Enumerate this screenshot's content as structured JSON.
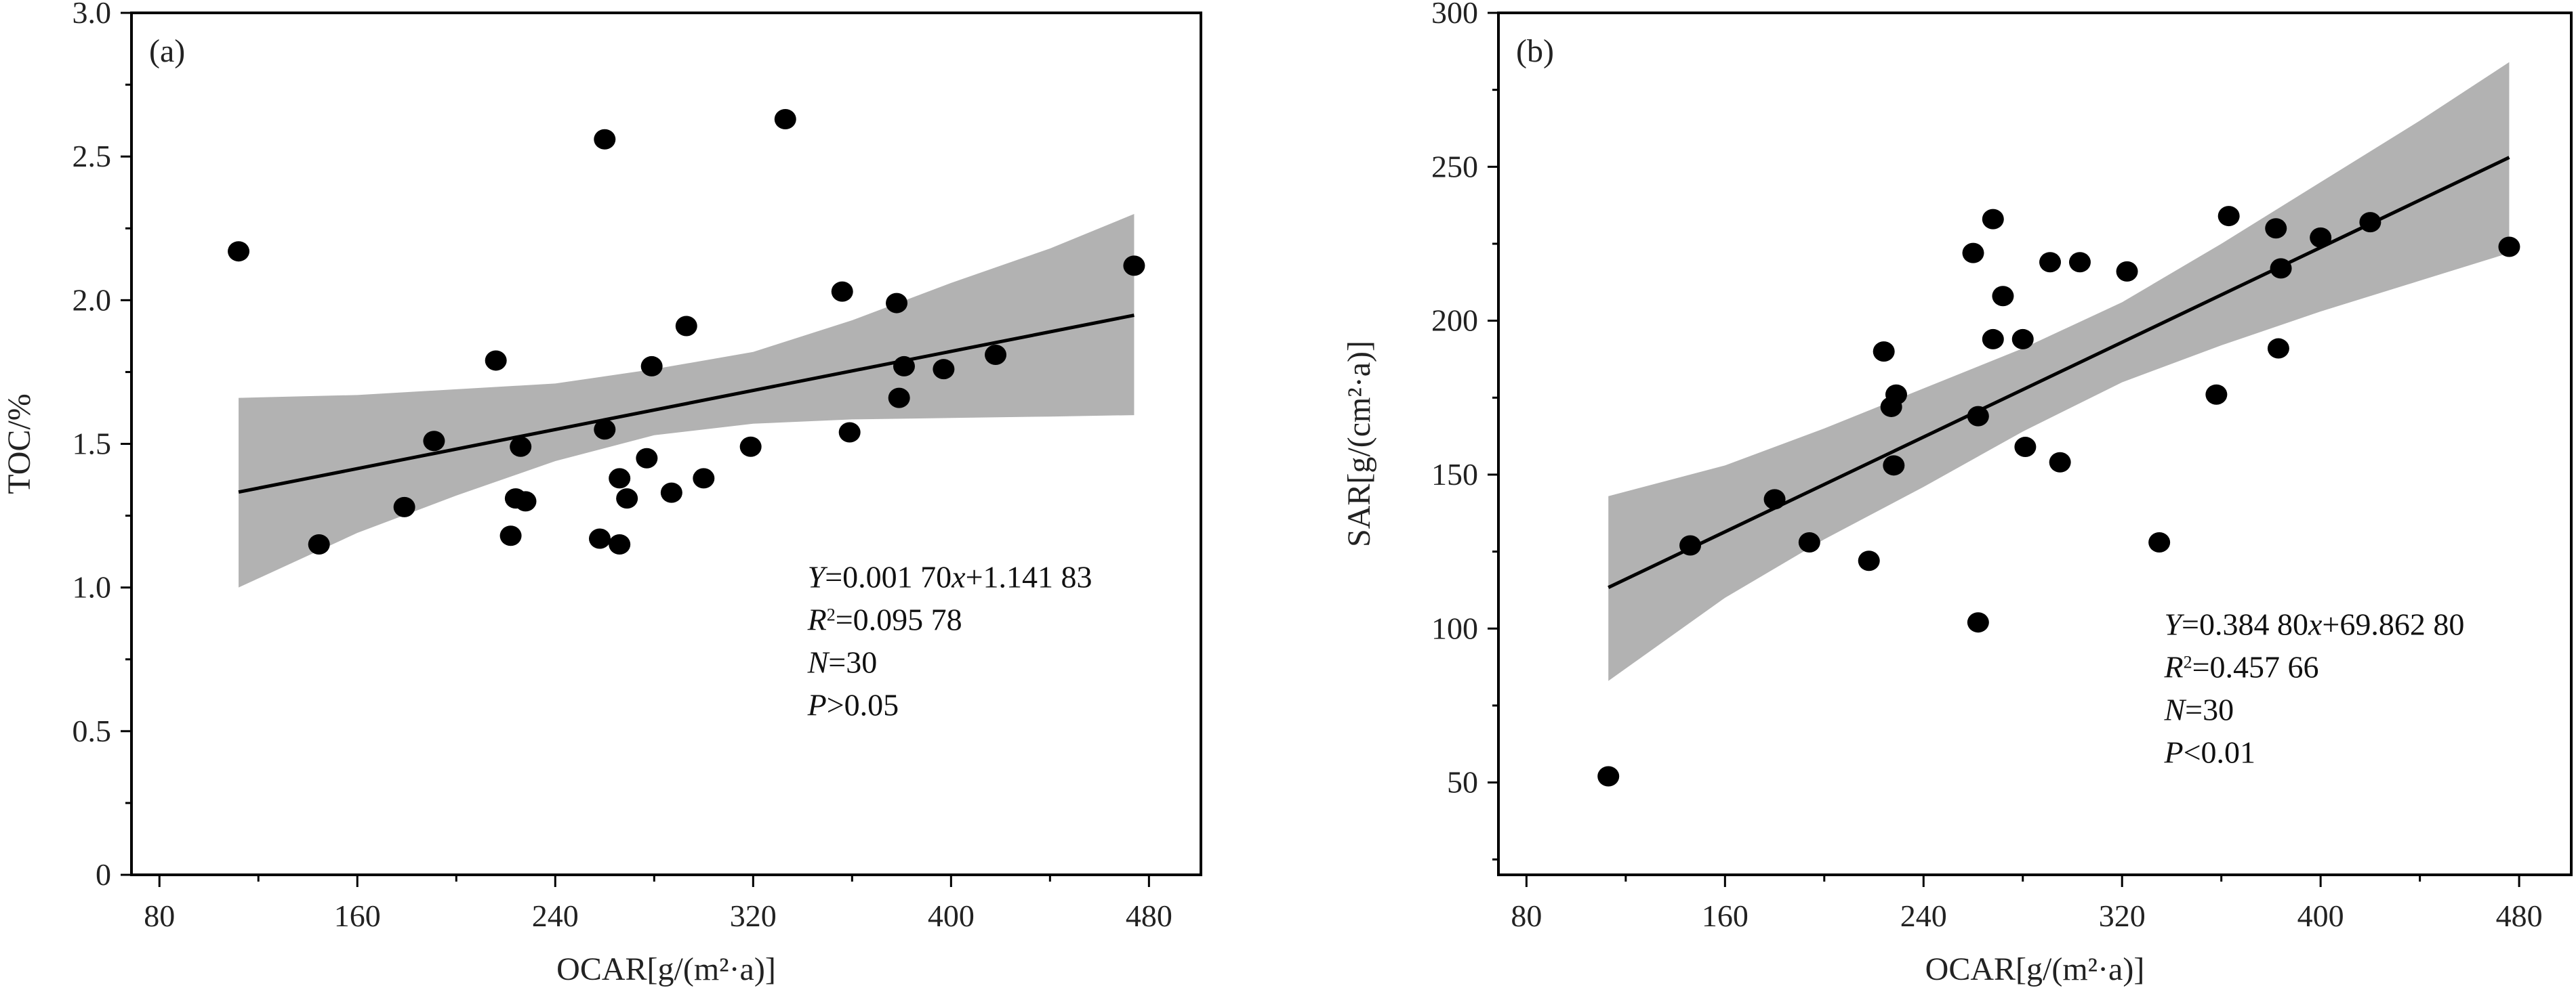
{
  "chart_data": [
    {
      "type": "scatter",
      "panel_label": "(a)",
      "xlabel": "OCAR[g/(m²·a)]",
      "ylabel": "TOC/%",
      "xlim": [
        68.7,
        501
      ],
      "ylim": [
        0,
        3
      ],
      "xticks": [
        80,
        160,
        240,
        320,
        400,
        480
      ],
      "xtick_labels": [
        "80",
        "160",
        "240",
        "320",
        "400",
        "480"
      ],
      "yticks": [
        0,
        0.5,
        1.0,
        1.5,
        2.0,
        2.5,
        3.0
      ],
      "ytick_labels": [
        "0",
        "0.5",
        "1.0",
        "1.5",
        "2.0",
        "2.5",
        "3.0"
      ],
      "grid": false,
      "points": {
        "x": [
          112,
          144.5,
          179,
          191,
          216,
          222,
          224,
          226,
          228,
          258,
          260,
          260,
          266,
          266,
          269,
          277,
          279,
          287,
          293,
          300,
          319,
          333,
          356,
          359,
          378,
          379,
          381,
          397,
          418,
          474
        ],
        "y": [
          2.17,
          1.15,
          1.28,
          1.51,
          1.79,
          1.18,
          1.31,
          1.49,
          1.3,
          1.17,
          2.56,
          1.55,
          1.38,
          1.15,
          1.31,
          1.45,
          1.77,
          1.33,
          1.91,
          1.38,
          1.49,
          2.63,
          2.03,
          1.54,
          1.99,
          1.66,
          1.77,
          1.76,
          1.81,
          2.12
        ]
      },
      "fit": {
        "slope": 0.0017,
        "intercept": 1.14183,
        "x_range": [
          112,
          474
        ]
      },
      "confidence_band": {
        "x": [
          112,
          160,
          200,
          240,
          280,
          320,
          360,
          400,
          440,
          474
        ],
        "lower": [
          1.0,
          1.19,
          1.32,
          1.44,
          1.53,
          1.57,
          1.585,
          1.59,
          1.595,
          1.6
        ],
        "upper": [
          1.66,
          1.67,
          1.69,
          1.71,
          1.76,
          1.82,
          1.93,
          2.06,
          2.18,
          2.3
        ]
      },
      "annotation": {
        "eq": [
          "Y",
          "=0.001 70",
          "x",
          "+1.141 83"
        ],
        "r2": [
          "R",
          "2",
          "=0.095 78"
        ],
        "n": [
          "N",
          "=30"
        ],
        "p": [
          "P",
          ">0.05"
        ]
      }
    },
    {
      "type": "scatter",
      "panel_label": "(b)",
      "xlabel": "OCAR[g/(m²·a)]",
      "ylabel": "SAR[g/(cm²·a)]",
      "xlim": [
        68.7,
        501
      ],
      "ylim": [
        20,
        300
      ],
      "xticks": [
        80,
        160,
        240,
        320,
        400,
        480
      ],
      "xtick_labels": [
        "80",
        "160",
        "240",
        "320",
        "400",
        "480"
      ],
      "yticks": [
        50,
        100,
        150,
        200,
        250,
        300
      ],
      "ytick_labels": [
        "50",
        "100",
        "150",
        "200",
        "250",
        "300"
      ],
      "grid": false,
      "points": {
        "x": [
          113,
          146,
          180,
          194,
          218,
          224,
          227,
          229,
          228,
          260,
          262,
          262,
          268,
          268,
          272,
          280,
          281,
          291,
          295,
          303,
          322,
          335,
          358,
          363,
          383,
          382,
          384,
          400,
          420,
          476
        ],
        "y": [
          52,
          127,
          142,
          128,
          122,
          190,
          172,
          176,
          153,
          222,
          102,
          169,
          233,
          194,
          208,
          194,
          159,
          219,
          154,
          219,
          216,
          128,
          176,
          234,
          191,
          230,
          217,
          227,
          232,
          224
        ]
      },
      "fit": {
        "slope": 0.3848,
        "intercept": 69.8628,
        "x_range": [
          113,
          476
        ]
      },
      "confidence_band": {
        "x": [
          113,
          160,
          200,
          240,
          280,
          320,
          360,
          400,
          440,
          476
        ],
        "lower": [
          83,
          110,
          129,
          146,
          164,
          180,
          192,
          203,
          213,
          222
        ],
        "upper": [
          143,
          153,
          165,
          178,
          191,
          206,
          225,
          245,
          265,
          284
        ]
      },
      "annotation": {
        "eq": [
          "Y",
          "=0.384 80",
          "x",
          "+69.862 80"
        ],
        "r2": [
          "R",
          "2",
          "=0.457 66"
        ],
        "n": [
          "N",
          "=30"
        ],
        "p": [
          "P",
          "<0.01"
        ]
      }
    }
  ],
  "colors": {
    "band": "#b2b2b2",
    "points": "#000000",
    "line": "#000000",
    "frame": "#000000"
  }
}
